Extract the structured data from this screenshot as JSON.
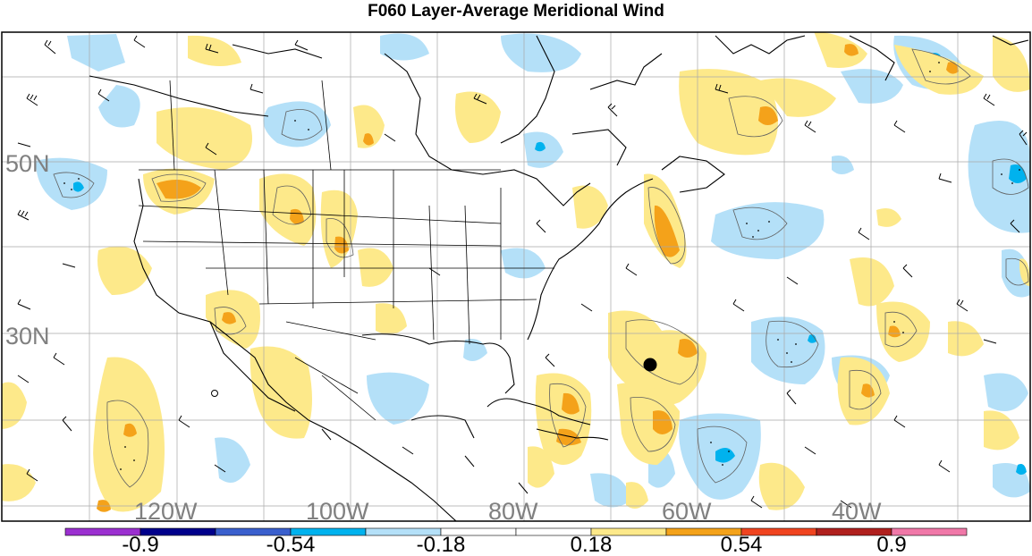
{
  "title": "F060 Layer-Average Meridional Wind",
  "latitude_labels": [
    "50N",
    "30N"
  ],
  "longitude_labels": [
    "120W",
    "100W",
    "80W",
    "60W",
    "40W"
  ],
  "colorbar": {
    "tick_labels": [
      "-0.9",
      "-0.54",
      "-0.18",
      "0.18",
      "0.54",
      "0.9"
    ],
    "colors": [
      "#9b30d0",
      "#00008b",
      "#3a5fcd",
      "#00b2ee",
      "#b4e0f8",
      "#ffffff",
      "#ffffff",
      "#fde98a",
      "#f4a21a",
      "#f0441f",
      "#b0201e",
      "#f078a8"
    ]
  },
  "shading_colors": {
    "light_blue": "#b4e0f8",
    "medium_blue": "#00b2ee",
    "light_yellow": "#fde98a",
    "orange": "#f4a21a"
  },
  "marker": {
    "color": "#000000"
  }
}
